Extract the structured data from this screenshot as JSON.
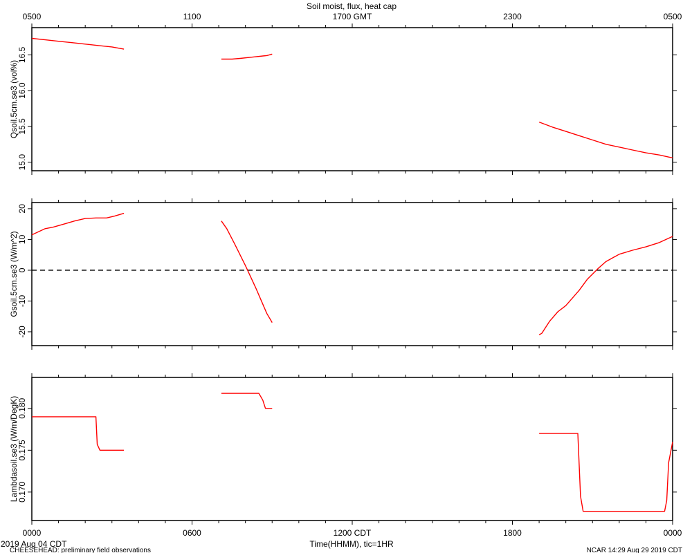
{
  "page": {
    "title": "Soil moist, flux, heat cap",
    "top_axis_ticks": [
      "0500",
      "1100",
      "1700 GMT",
      "2300",
      "0500"
    ],
    "bottom_axis_ticks": [
      "0000",
      "0600",
      "1200 CDT",
      "1800",
      "0000"
    ],
    "xlabel": "Time(HHMM), tic=1HR",
    "date_label": "2019 Aug 04 CDT",
    "footer_left": "CHEESEHEAD: preliminary field observations",
    "footer_right": "NCAR 14:29 Aug 29 2019 CDT"
  },
  "colors": {
    "series": "#ff0000",
    "axes": "#000000",
    "zero_line": "#000000"
  },
  "chart_data": [
    {
      "type": "line",
      "ylabel": "Qsoil.5cm.se3 (vol%)",
      "xlim": [
        0,
        24
      ],
      "ylim": [
        14.88,
        16.88
      ],
      "yticks": [
        15.0,
        15.5,
        16.0,
        16.5
      ],
      "ytick_labels": [
        "15.0",
        "15.5",
        "16.0",
        "16.5"
      ],
      "zero_line": false,
      "series": [
        {
          "x": [
            0,
            0.5,
            1,
            1.5,
            2,
            2.5,
            3,
            3.45
          ],
          "y": [
            16.73,
            16.71,
            16.69,
            16.67,
            16.65,
            16.63,
            16.61,
            16.58
          ]
        },
        {
          "x": [
            7.1,
            7.5,
            7.8,
            8.3,
            8.8,
            9.0
          ],
          "y": [
            16.44,
            16.44,
            16.45,
            16.47,
            16.49,
            16.51
          ]
        },
        {
          "x": [
            19.0,
            19.5,
            20.0,
            20.5,
            21.0,
            21.5,
            22.0,
            22.5,
            23.0,
            23.5,
            24.0
          ],
          "y": [
            15.56,
            15.49,
            15.43,
            15.37,
            15.31,
            15.25,
            15.21,
            15.17,
            15.13,
            15.1,
            15.06
          ]
        }
      ]
    },
    {
      "type": "line",
      "ylabel": "Gsoil.5cm.se3 (W/m^2)",
      "xlim": [
        0,
        24
      ],
      "ylim": [
        -24.5,
        22
      ],
      "yticks": [
        -20,
        -10,
        0,
        10,
        20
      ],
      "ytick_labels": [
        "-20",
        "-10",
        "0",
        "10",
        "20"
      ],
      "zero_line": true,
      "series": [
        {
          "x": [
            0,
            0.5,
            0.8,
            1.2,
            1.6,
            2.0,
            2.4,
            2.8,
            3.1,
            3.45
          ],
          "y": [
            11.5,
            13.5,
            14.0,
            15.0,
            16.0,
            16.8,
            17.0,
            17.0,
            17.6,
            18.5
          ]
        },
        {
          "x": [
            7.1,
            7.3,
            7.6,
            8.0,
            8.4,
            8.8,
            9.0
          ],
          "y": [
            16.0,
            13.5,
            8.5,
            1.5,
            -6.0,
            -14.0,
            -17.0
          ]
        },
        {
          "x": [
            19.0,
            19.1,
            19.4,
            19.7,
            20.0,
            20.5,
            20.8,
            21.2,
            21.5,
            22.0,
            22.5,
            23.0,
            23.5,
            24.0
          ],
          "y": [
            -21.0,
            -20.5,
            -16.5,
            -13.5,
            -11.5,
            -6.5,
            -3.0,
            0.5,
            2.8,
            5.2,
            6.5,
            7.6,
            9.0,
            11.0
          ]
        }
      ]
    },
    {
      "type": "line",
      "ylabel": "Lambdasoil.se3 (W/m/DegK)",
      "xlim": [
        0,
        24
      ],
      "ylim": [
        0.1666,
        0.1837
      ],
      "yticks": [
        0.17,
        0.175,
        0.18
      ],
      "ytick_labels": [
        "0.170",
        "0.175",
        "0.180"
      ],
      "zero_line": false,
      "series": [
        {
          "x": [
            0,
            2.4,
            2.45,
            2.55,
            3.45
          ],
          "y": [
            0.179,
            0.179,
            0.1757,
            0.175,
            0.175
          ]
        },
        {
          "x": [
            7.1,
            8.5,
            8.65,
            8.75,
            9.0
          ],
          "y": [
            0.1818,
            0.1818,
            0.181,
            0.18,
            0.18
          ]
        },
        {
          "x": [
            19.0,
            20.45,
            20.55,
            20.65,
            23.7,
            23.78,
            23.85,
            24.0
          ],
          "y": [
            0.177,
            0.177,
            0.1695,
            0.1677,
            0.1677,
            0.169,
            0.1735,
            0.176
          ]
        }
      ]
    }
  ]
}
